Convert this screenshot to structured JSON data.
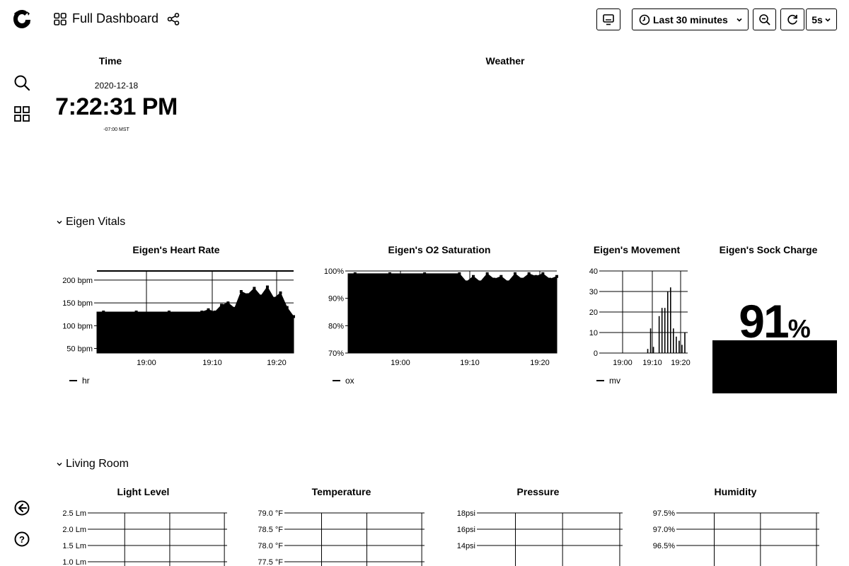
{
  "sidebar": {
    "logo": "grafana-logo-icon",
    "items": [
      "search-icon",
      "dashboards-icon"
    ],
    "bottom": [
      "sign-in-icon",
      "help-icon"
    ]
  },
  "header": {
    "title": "Full Dashboard",
    "time_range": "Last 30 minutes",
    "refresh_interval": "5s"
  },
  "time_panel": {
    "title": "Time",
    "date": "2020-12-18",
    "time": "7:22:31 PM",
    "timezone": "-07:00 MST"
  },
  "weather_panel": {
    "title": "Weather"
  },
  "rows": {
    "vitals": "Eigen Vitals",
    "living": "Living Room"
  },
  "panels": {
    "heart_rate": {
      "title": "Eigen's Heart Rate",
      "legend": "hr"
    },
    "o2": {
      "title": "Eigen's O2 Saturation",
      "legend": "ox"
    },
    "movement": {
      "title": "Eigen's Movement",
      "legend": "mv"
    },
    "sock": {
      "title": "Eigen's Sock Charge",
      "value": "91",
      "unit": "%"
    },
    "light": {
      "title": "Light Level"
    },
    "temperature": {
      "title": "Temperature"
    },
    "pressure": {
      "title": "Pressure"
    },
    "humidity": {
      "title": "Humidity"
    }
  },
  "chart_data": [
    {
      "type": "area",
      "title": "Eigen's Heart Rate",
      "ylabel": "",
      "y_ticks": [
        "50 bpm",
        "100 bpm",
        "150 bpm",
        "200 bpm"
      ],
      "x_ticks": [
        "19:00",
        "19:10",
        "19:20"
      ],
      "ylim": [
        40,
        220
      ],
      "threshold": 220,
      "series": [
        {
          "name": "hr",
          "x": [
            "18:53",
            "18:58",
            "19:03",
            "19:08",
            "19:09",
            "19:10",
            "19:11",
            "19:12",
            "19:13",
            "19:14",
            "19:15",
            "19:16",
            "19:17",
            "19:18",
            "19:19",
            "19:20",
            "19:21",
            "19:22"
          ],
          "values": [
            130,
            130,
            130,
            130,
            135,
            130,
            145,
            150,
            138,
            175,
            168,
            182,
            165,
            185,
            160,
            172,
            140,
            120
          ]
        }
      ]
    },
    {
      "type": "area",
      "title": "Eigen's O2 Saturation",
      "ylabel": "",
      "y_ticks": [
        "70%",
        "80%",
        "90%",
        "100%"
      ],
      "x_ticks": [
        "19:00",
        "19:10",
        "19:20"
      ],
      "ylim": [
        70,
        100
      ],
      "series": [
        {
          "name": "ox",
          "x": [
            "18:53",
            "18:58",
            "19:03",
            "19:08",
            "19:09",
            "19:10",
            "19:11",
            "19:12",
            "19:13",
            "19:14",
            "19:15",
            "19:16",
            "19:17",
            "19:18",
            "19:19",
            "19:20",
            "19:21",
            "19:22"
          ],
          "values": [
            99,
            99,
            99,
            99,
            96,
            98,
            96,
            99,
            97,
            98,
            96,
            99,
            97,
            99,
            98,
            99,
            97,
            98
          ]
        }
      ]
    },
    {
      "type": "bar",
      "title": "Eigen's Movement",
      "ylabel": "",
      "y_ticks": [
        "0",
        "10",
        "20",
        "30",
        "40"
      ],
      "x_ticks": [
        "19:00",
        "19:10",
        "19:20"
      ],
      "ylim": [
        0,
        40
      ],
      "series": [
        {
          "name": "mv",
          "x": [
            "19:08",
            "19:09",
            "19:10",
            "19:11",
            "19:12",
            "19:13",
            "19:14",
            "19:15",
            "19:16",
            "19:17",
            "19:18",
            "19:19",
            "19:20",
            "19:21"
          ],
          "values": [
            2,
            12,
            3,
            0,
            18,
            22,
            22,
            30,
            32,
            12,
            8,
            6,
            4,
            10
          ]
        }
      ]
    },
    {
      "type": "line",
      "title": "Light Level",
      "y_ticks": [
        "1.0 Lm",
        "1.5 Lm",
        "2.0 Lm",
        "2.5 Lm"
      ],
      "ylim": [
        1.0,
        2.5
      ]
    },
    {
      "type": "line",
      "title": "Temperature",
      "y_ticks": [
        "77.5 °F",
        "78.0 °F",
        "78.5 °F",
        "79.0 °F"
      ],
      "ylim": [
        77.5,
        79.0
      ]
    },
    {
      "type": "line",
      "title": "Pressure",
      "y_ticks": [
        "14psi",
        "16psi",
        "18psi"
      ],
      "ylim": [
        14,
        18
      ]
    },
    {
      "type": "line",
      "title": "Humidity",
      "y_ticks": [
        "96.5%",
        "97.0%",
        "97.5%"
      ],
      "ylim": [
        96.5,
        97.5
      ]
    }
  ]
}
